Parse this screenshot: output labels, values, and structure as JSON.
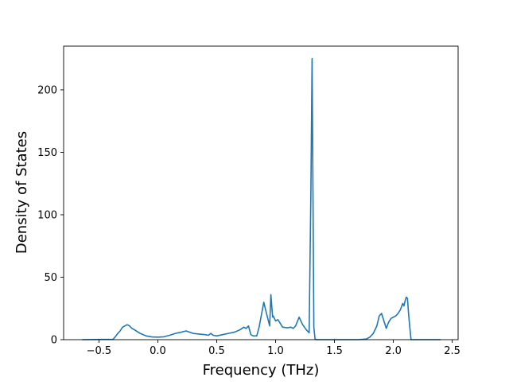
{
  "chart_data": {
    "type": "line",
    "title": "",
    "xlabel": "Frequency (THz)",
    "ylabel": "Density of States",
    "xlim": [
      -0.8,
      2.55
    ],
    "ylim": [
      0,
      235
    ],
    "x_ticks": [
      -0.5,
      0.0,
      0.5,
      1.0,
      1.5,
      2.0,
      2.5
    ],
    "x_tick_labels": [
      "−0.5",
      "0.0",
      "0.5",
      "1.0",
      "1.5",
      "2.0",
      "2.5"
    ],
    "y_ticks": [
      0,
      50,
      100,
      150,
      200
    ],
    "y_tick_labels": [
      "0",
      "50",
      "100",
      "150",
      "200"
    ],
    "grid": false,
    "legend": "none",
    "line_color": "#1f77b4",
    "series": [
      {
        "x": [
          -0.64,
          -0.38,
          -0.36,
          -0.34,
          -0.32,
          -0.3,
          -0.28,
          -0.26,
          -0.24,
          -0.22,
          -0.2,
          -0.15,
          -0.1,
          -0.05,
          0.0,
          0.05,
          0.1,
          0.15,
          0.2,
          0.24,
          0.27,
          0.3,
          0.35,
          0.4,
          0.43,
          0.45,
          0.47,
          0.5,
          0.55,
          0.6,
          0.65,
          0.7,
          0.73,
          0.75,
          0.77,
          0.79,
          0.81,
          0.84,
          0.86,
          0.88,
          0.9,
          0.92,
          0.95,
          0.96,
          0.975,
          0.98,
          1.0,
          1.02,
          1.04,
          1.06,
          1.1,
          1.13,
          1.15,
          1.17,
          1.2,
          1.23,
          1.26,
          1.285,
          1.3,
          1.31,
          1.325,
          1.335,
          1.35,
          1.4,
          1.5,
          1.6,
          1.7,
          1.77,
          1.8,
          1.83,
          1.86,
          1.88,
          1.9,
          1.92,
          1.94,
          1.96,
          1.98,
          2.0,
          2.02,
          2.04,
          2.06,
          2.08,
          2.09,
          2.1,
          2.11,
          2.12,
          2.13,
          2.15,
          2.17,
          2.2,
          2.3,
          2.4
        ],
        "y": [
          0,
          0.3,
          2.5,
          5,
          7,
          10,
          11,
          12,
          11,
          9,
          8,
          5,
          3,
          2.2,
          2,
          2.3,
          3.5,
          5,
          6,
          7,
          6,
          5,
          4.5,
          4,
          3.5,
          5,
          3.5,
          3,
          4,
          5,
          6,
          8,
          10,
          9,
          11,
          4,
          3,
          3,
          10,
          20,
          30,
          22,
          11,
          36,
          18,
          19,
          15,
          16,
          13,
          10,
          9.5,
          10,
          9,
          11,
          18,
          12,
          8,
          5.5,
          120,
          225,
          10,
          0.5,
          0,
          0,
          0,
          0,
          0,
          0.5,
          2,
          5,
          11,
          19,
          21,
          15,
          9,
          14,
          17,
          18,
          19,
          21,
          24,
          29,
          27,
          31,
          34,
          33,
          20,
          0,
          0,
          0,
          0,
          0
        ]
      }
    ]
  }
}
